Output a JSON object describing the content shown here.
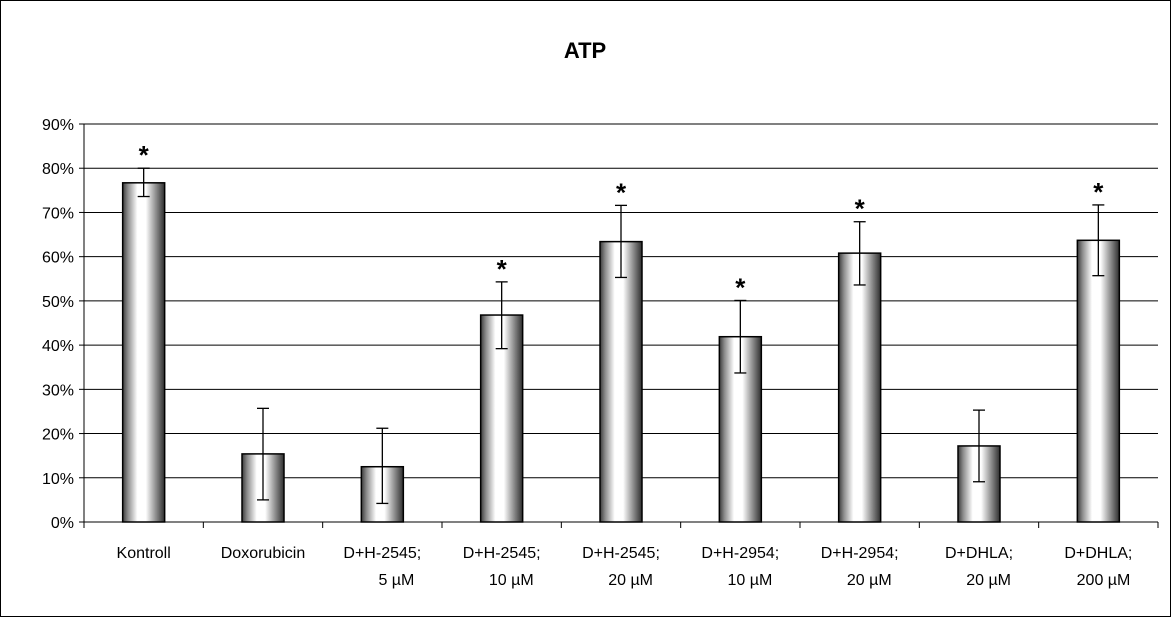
{
  "chart_data": {
    "type": "bar",
    "title": "ATP",
    "xlabel": "",
    "ylabel": "",
    "ylim": [
      0,
      90
    ],
    "yticks": [
      "0%",
      "10%",
      "20%",
      "30%",
      "40%",
      "50%",
      "60%",
      "70%",
      "80%",
      "90%"
    ],
    "grid": true,
    "legend": "none",
    "categories": [
      [
        "Kontroll"
      ],
      [
        "Doxorubicin"
      ],
      [
        "D+H-2545;",
        "5 µM"
      ],
      [
        "D+H-2545;",
        "10 µM"
      ],
      [
        "D+H-2545;",
        "20 µM"
      ],
      [
        "D+H-2954;",
        "10 µM"
      ],
      [
        "D+H-2954;",
        "20 µM"
      ],
      [
        "D+DHLA;",
        "20 µM"
      ],
      [
        "D+DHLA;",
        "200 µM"
      ]
    ],
    "values": [
      76.7,
      15.4,
      12.5,
      46.8,
      63.4,
      41.9,
      60.8,
      17.2,
      63.7
    ],
    "error_low": [
      73.6,
      5.0,
      4.2,
      39.2,
      55.3,
      33.7,
      53.6,
      9.1,
      55.7
    ],
    "error_high": [
      80.0,
      25.7,
      21.2,
      54.3,
      71.6,
      50.1,
      67.9,
      25.3,
      71.7
    ],
    "significance": [
      "*",
      "",
      "",
      "*",
      "*",
      "*",
      "*",
      "",
      "*"
    ],
    "colors": {
      "bar_edge": "#000000",
      "bar_dark": "#3a3a3a",
      "bar_light": "#ffffff",
      "grid": "#000000"
    }
  }
}
